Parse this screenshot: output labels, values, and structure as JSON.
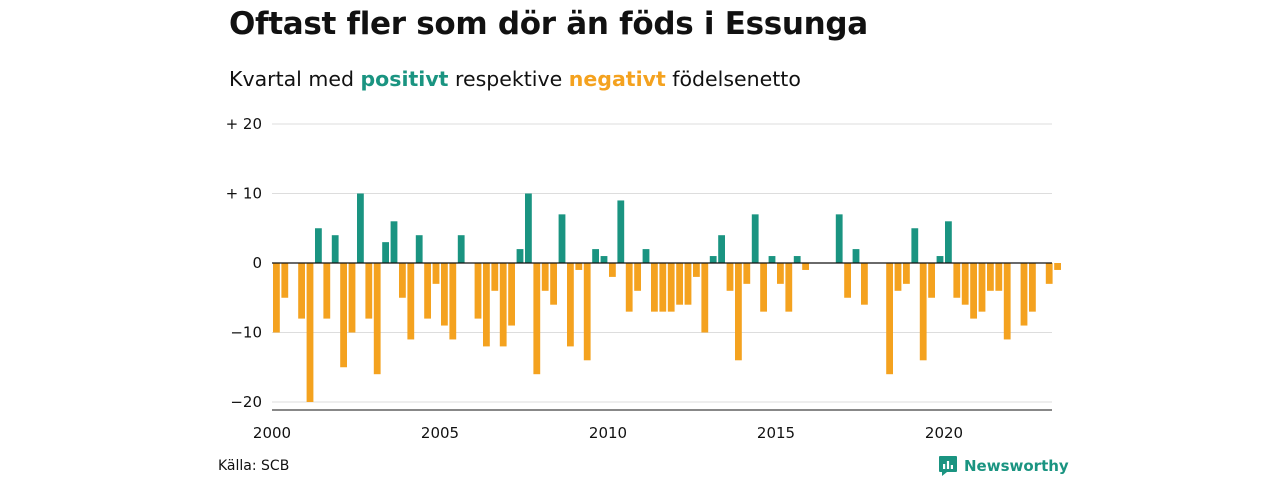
{
  "title": "Oftast fler som dör än föds i Essunga",
  "subtitle": {
    "prefix": "Kvartal med ",
    "positive": "positivt",
    "middle": " respektive ",
    "negative": "negativt",
    "suffix": " födelsenetto"
  },
  "source": "Källa: SCB",
  "brand": "Newsworthy",
  "colors": {
    "positive": "#1a9481",
    "negative": "#f4a21f",
    "grid": "#dddddd"
  },
  "chart_data": {
    "type": "bar",
    "x_start": 2000,
    "quarters_per_year": 4,
    "ylim": [
      -20,
      20
    ],
    "y_ticks": [
      {
        "value": 20,
        "label": "+ 20"
      },
      {
        "value": 10,
        "label": "+ 10"
      },
      {
        "value": 0,
        "label": "0"
      },
      {
        "value": -10,
        "label": "−10"
      },
      {
        "value": -20,
        "label": "−20"
      }
    ],
    "x_ticks": [
      {
        "value": 2000,
        "label": "2000"
      },
      {
        "value": 2005,
        "label": "2005"
      },
      {
        "value": 2010,
        "label": "2010"
      },
      {
        "value": 2015,
        "label": "2015"
      },
      {
        "value": 2020,
        "label": "2020"
      }
    ],
    "values": [
      -10,
      -5,
      0,
      -8,
      -20,
      5,
      -8,
      4,
      -15,
      -10,
      10,
      -8,
      -16,
      3,
      6,
      -5,
      -11,
      4,
      -8,
      -3,
      -9,
      -11,
      4,
      0,
      -8,
      -12,
      -4,
      -12,
      -9,
      2,
      10,
      -16,
      -4,
      -6,
      7,
      -12,
      -1,
      -14,
      2,
      1,
      -2,
      9,
      -7,
      -4,
      2,
      -7,
      -7,
      -7,
      -6,
      -6,
      -2,
      -10,
      1,
      4,
      -4,
      -14,
      -3,
      7,
      -7,
      1,
      -3,
      -7,
      1,
      -1,
      0,
      0,
      0,
      7,
      -5,
      2,
      -6,
      0,
      0,
      -16,
      -4,
      -3,
      5,
      -14,
      -5,
      1,
      6,
      -5,
      -6,
      -8,
      -7,
      -4,
      -4,
      -11,
      0,
      -9,
      -7,
      0,
      -3,
      -1
    ]
  }
}
